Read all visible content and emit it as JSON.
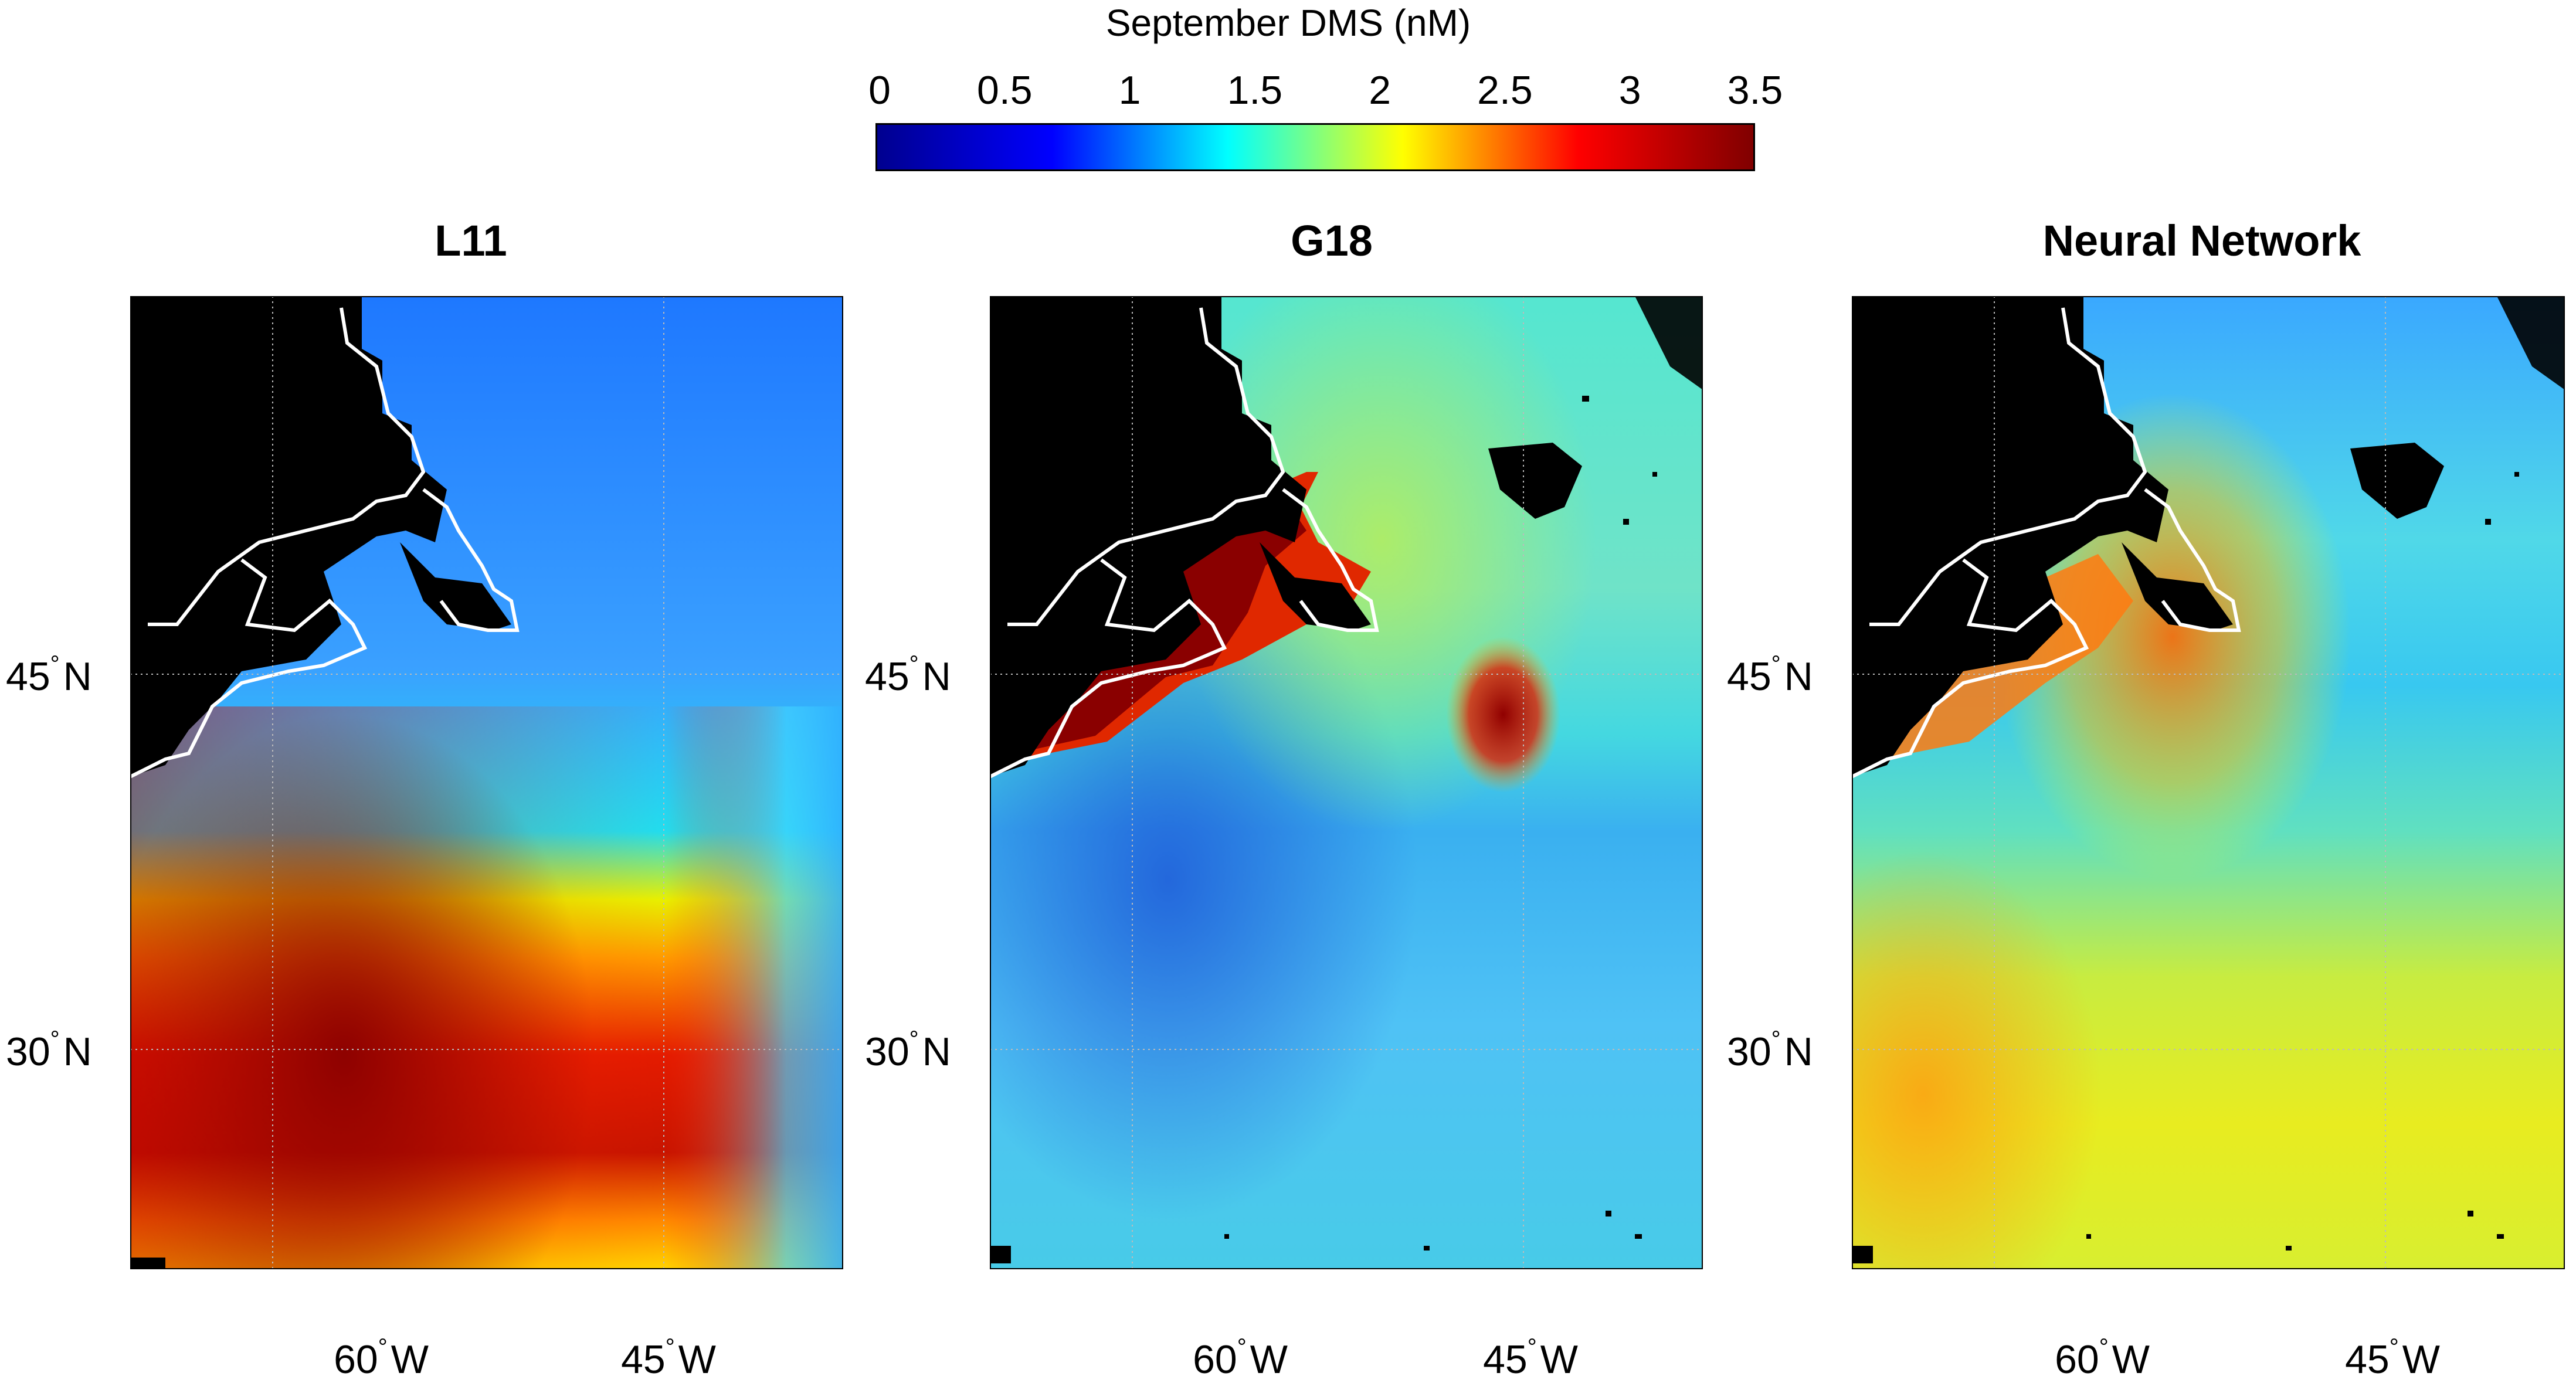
{
  "colorbar": {
    "title": "September DMS (nM)",
    "ticks": [
      "0",
      "0.5",
      "1",
      "1.5",
      "2",
      "2.5",
      "3",
      "3.5"
    ],
    "range": [
      0,
      3.5
    ],
    "colormap": [
      "#00008f",
      "#0000ff",
      "#00ffff",
      "#ffff00",
      "#ff0000",
      "#800000"
    ]
  },
  "panels": [
    {
      "title": "L11"
    },
    {
      "title": "G18"
    },
    {
      "title": "Neural Network"
    }
  ],
  "axes": {
    "lat_labels": [
      "45",
      "30"
    ],
    "lat_suffix": "N",
    "lon_labels": [
      "60",
      "45"
    ],
    "lon_suffix": "W",
    "degree_mark": "°"
  },
  "chart_data": {
    "type": "heatmap",
    "title": "September DMS (nM)",
    "variable": "DMS concentration",
    "units": "nM",
    "clim": [
      0,
      3.5
    ],
    "maps": [
      {
        "name": "L11",
        "regional_levels_nM": {
          "subpolar_north": 1.0,
          "nova_scotia_shelf": 1.3,
          "gulf_stream_band": 2.2,
          "subtropical_gyre_30N": 3.2,
          "east_edge": 1.6
        }
      },
      {
        "name": "G18",
        "regional_levels_nM": {
          "subpolar_north": 1.4,
          "gulf_of_st_lawrence": 3.5,
          "shelf_45N": 3.2,
          "subtropical_gyre_30N": 1.1,
          "southern_edge": 1.3
        }
      },
      {
        "name": "Neural Network",
        "regional_levels_nM": {
          "subpolar_north": 1.2,
          "gulf_of_st_lawrence": 2.8,
          "shelf_45N": 2.6,
          "subtropical_gyre_30N": 2.1,
          "southern_edge": 2.0
        }
      }
    ],
    "grid": true
  }
}
